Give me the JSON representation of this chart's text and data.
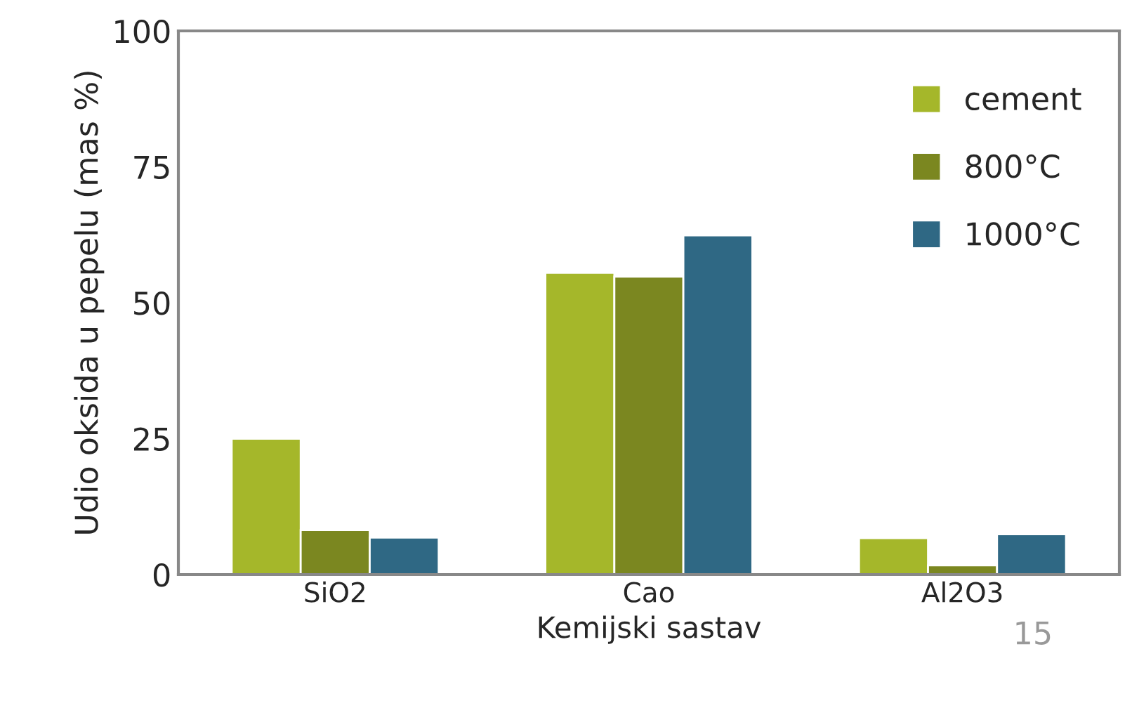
{
  "chart_data": {
    "type": "bar",
    "xlabel": "Kemijski sastav",
    "ylabel": "Udio oksida u pepelu (mas %)",
    "categories": [
      "SiO2",
      "Cao",
      "Al2O3"
    ],
    "series": [
      {
        "name": "cement",
        "color": "#a5b72a",
        "values": [
          25.0,
          55.5,
          6.7
        ]
      },
      {
        "name": "800°C",
        "color": "#7b8720",
        "values": [
          8.2,
          54.8,
          1.7
        ]
      },
      {
        "name": "1000°C",
        "color": "#2f6884",
        "values": [
          6.8,
          62.4,
          7.4
        ]
      }
    ],
    "ylim": [
      0,
      100
    ],
    "yticks": [
      0,
      25,
      50,
      75,
      100
    ],
    "grid": false,
    "legend": "top right",
    "annotations": [
      "15"
    ]
  }
}
